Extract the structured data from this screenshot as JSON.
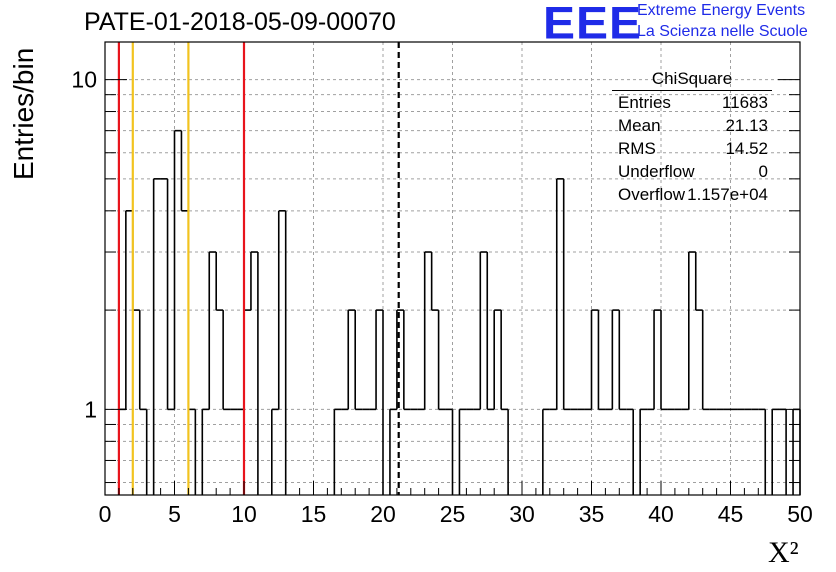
{
  "title": "PATE-01-2018-05-09-00070",
  "logo": {
    "mark": "EEE",
    "line1": "Extreme Energy Events",
    "line2": "La Scienza nelle Scuole",
    "color": "#1f2be8"
  },
  "stats_box": {
    "title": "ChiSquare",
    "rows": [
      {
        "key": "Entries",
        "value": "11683"
      },
      {
        "key": "Mean",
        "value": "21.13"
      },
      {
        "key": "RMS",
        "value": "14.52"
      },
      {
        "key": "Underflow",
        "value": "0"
      },
      {
        "key": "Overflow",
        "value": "1.157e+04"
      }
    ]
  },
  "chart_data": {
    "type": "histogram",
    "xlabel": "X²",
    "ylabel": "Entries/bin",
    "xlim": [
      0,
      50
    ],
    "ylim": [
      0.55,
      13
    ],
    "yscale": "log",
    "grid": true,
    "x_ticks": [
      0,
      5,
      10,
      15,
      20,
      25,
      30,
      35,
      40,
      45,
      50
    ],
    "y_ticks": [
      1,
      10
    ],
    "bin_width": 0.5,
    "bin_start": 0,
    "counts": [
      0,
      0,
      1,
      4,
      2,
      1,
      0,
      5,
      5,
      1,
      7,
      4,
      1,
      0,
      1,
      3,
      2,
      1,
      1,
      1,
      2,
      3,
      0,
      0,
      1,
      4,
      0,
      0,
      0,
      0,
      0,
      0,
      0,
      1,
      1,
      2,
      1,
      1,
      1,
      2,
      0,
      1,
      2,
      1,
      1,
      1,
      3,
      2,
      1,
      1,
      0,
      1,
      1,
      1,
      3,
      1,
      2,
      1,
      0,
      0,
      0,
      0,
      0,
      1,
      1,
      5,
      1,
      1,
      1,
      1,
      2,
      1,
      1,
      2,
      1,
      1,
      0,
      1,
      1,
      2,
      1,
      1,
      1,
      1,
      3,
      2,
      1,
      1,
      1,
      1,
      1,
      1,
      1,
      1,
      1,
      0,
      1,
      1,
      0,
      1
    ],
    "markers": [
      {
        "x": 1,
        "color": "#e8141c",
        "style": "solid"
      },
      {
        "x": 10,
        "color": "#e8141c",
        "style": "solid"
      },
      {
        "x": 2,
        "color": "#f2c31f",
        "style": "solid"
      },
      {
        "x": 6,
        "color": "#f2c31f",
        "style": "solid"
      },
      {
        "x": 21.13,
        "color": "#000000",
        "style": "dashed"
      }
    ]
  }
}
